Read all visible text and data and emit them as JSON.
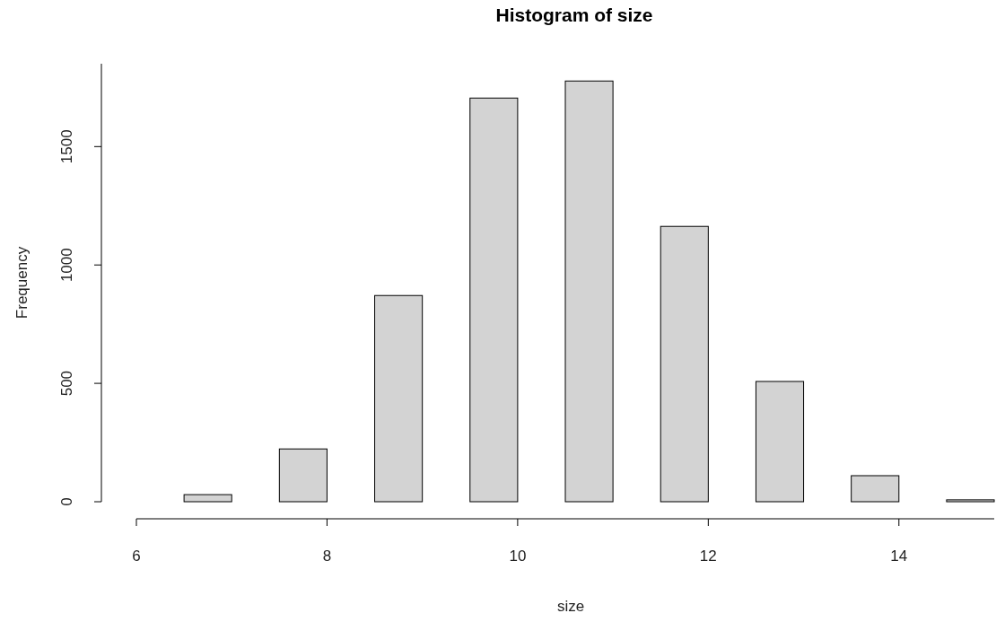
{
  "chart_data": {
    "type": "histogram",
    "title": "Histogram of size",
    "xlabel": "size",
    "ylabel": "Frequency",
    "bins": [
      6,
      6.5,
      7,
      7.5,
      8,
      8.5,
      9,
      9.5,
      10,
      10.5,
      11,
      11.5,
      12,
      12.5,
      13,
      13.5,
      14,
      14.5,
      15
    ],
    "values": [
      0,
      30,
      0,
      223,
      0,
      871,
      0,
      1705,
      0,
      1777,
      0,
      1163,
      0,
      508,
      0,
      110,
      0,
      8
    ],
    "color": "#d3d3d3",
    "xlim": [
      6,
      15
    ],
    "xticks": [
      6,
      8,
      10,
      12,
      14
    ],
    "ylim": [
      0,
      1850
    ],
    "yticks": [
      0,
      500,
      1000,
      1500
    ],
    "grid": false
  }
}
